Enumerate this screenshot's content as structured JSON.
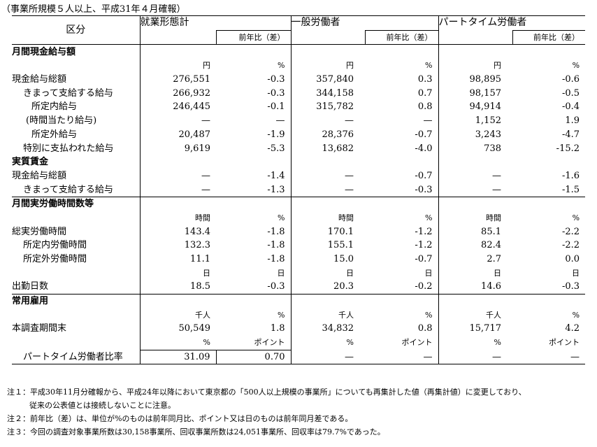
{
  "caption": "（事業所規模５人以上、平成31年４月確報）",
  "header": {
    "category": "区分",
    "groups": [
      "就業形態計",
      "一般労働者",
      "パートタイム労働者"
    ],
    "yoy": "前年比（差）"
  },
  "sections": {
    "wages": "月間現金給与額",
    "real_wages": "実質賃金",
    "hours": "月間実労働時間数等",
    "employment": "常用雇用"
  },
  "wage_units": [
    "円",
    "%",
    "円",
    "%",
    "円",
    "%"
  ],
  "wage_rows": [
    {
      "label": "現金給与総額",
      "values": [
        "276,551",
        "-0.3",
        "357,840",
        "0.3",
        "98,895",
        "-0.6"
      ]
    },
    {
      "label": "きまって支給する給与",
      "values": [
        "266,932",
        "-0.3",
        "344,158",
        "0.7",
        "98,157",
        "-0.5"
      ]
    },
    {
      "label": "所定内給与",
      "values": [
        "246,445",
        "-0.1",
        "315,782",
        "0.8",
        "94,914",
        "-0.4"
      ]
    },
    {
      "label": "(時間当たり給与)",
      "values": [
        "—",
        "—",
        "—",
        "—",
        "1,152",
        "1.9"
      ]
    },
    {
      "label": "所定外給与",
      "values": [
        "20,487",
        "-1.9",
        "28,376",
        "-0.7",
        "3,243",
        "-4.7"
      ]
    },
    {
      "label": "特別に支払われた給与",
      "values": [
        "9,619",
        "-5.3",
        "13,682",
        "-4.0",
        "738",
        "-15.2"
      ]
    }
  ],
  "real_wage_rows": [
    {
      "label": "現金給与総額",
      "values": [
        "—",
        "-1.4",
        "—",
        "-0.7",
        "—",
        "-1.6"
      ]
    },
    {
      "label": "きまって支給する給与",
      "values": [
        "—",
        "-1.3",
        "—",
        "-0.3",
        "—",
        "-1.5"
      ]
    }
  ],
  "hours_units": [
    "時間",
    "%",
    "時間",
    "%",
    "時間",
    "%"
  ],
  "hours_rows": [
    {
      "label": "総実労働時間",
      "values": [
        "143.4",
        "-1.8",
        "170.1",
        "-1.2",
        "85.1",
        "-2.2"
      ]
    },
    {
      "label": "所定内労働時間",
      "values": [
        "132.3",
        "-1.8",
        "155.1",
        "-1.2",
        "82.4",
        "-2.2"
      ]
    },
    {
      "label": "所定外労働時間",
      "values": [
        "11.1",
        "-1.8",
        "15.0",
        "-0.7",
        "2.7",
        "0.0"
      ]
    }
  ],
  "days_units": [
    "日",
    "日",
    "日",
    "日",
    "日",
    "日"
  ],
  "days_row": {
    "label": "出勤日数",
    "values": [
      "18.5",
      "-0.3",
      "20.3",
      "-0.2",
      "14.6",
      "-0.3"
    ]
  },
  "emp_units": [
    "千人",
    "%",
    "千人",
    "%",
    "千人",
    "%"
  ],
  "emp_row": {
    "label": "本調査期間末",
    "values": [
      "50,549",
      "1.8",
      "34,832",
      "0.8",
      "15,717",
      "4.2"
    ]
  },
  "ratio_units": [
    "%",
    "ポイント",
    "%",
    "ポイント",
    "%",
    "ポイント"
  ],
  "ratio_row": {
    "label": "パートタイム労働者比率",
    "values": [
      "31.09",
      "0.70",
      "—",
      "—",
      "—",
      "—"
    ]
  },
  "notes": {
    "n1_line1": "注１：平成30年11月分確報から、平成24年以降において東京都の「500人以上規模の事業所」についても再集計した値（再集計値）に変更しており、",
    "n1_line2": "従来の公表値とは接続しないことに注意。",
    "n2": "注２：前年比（差）は、単位が%のものは前年同月比、ポイント又は日のものは前年同月差である。",
    "n3": "注３：今回の調査対象事業所数は30,158事業所、回収事業所数は24,051事業所、回収率は79.7%であった。"
  }
}
